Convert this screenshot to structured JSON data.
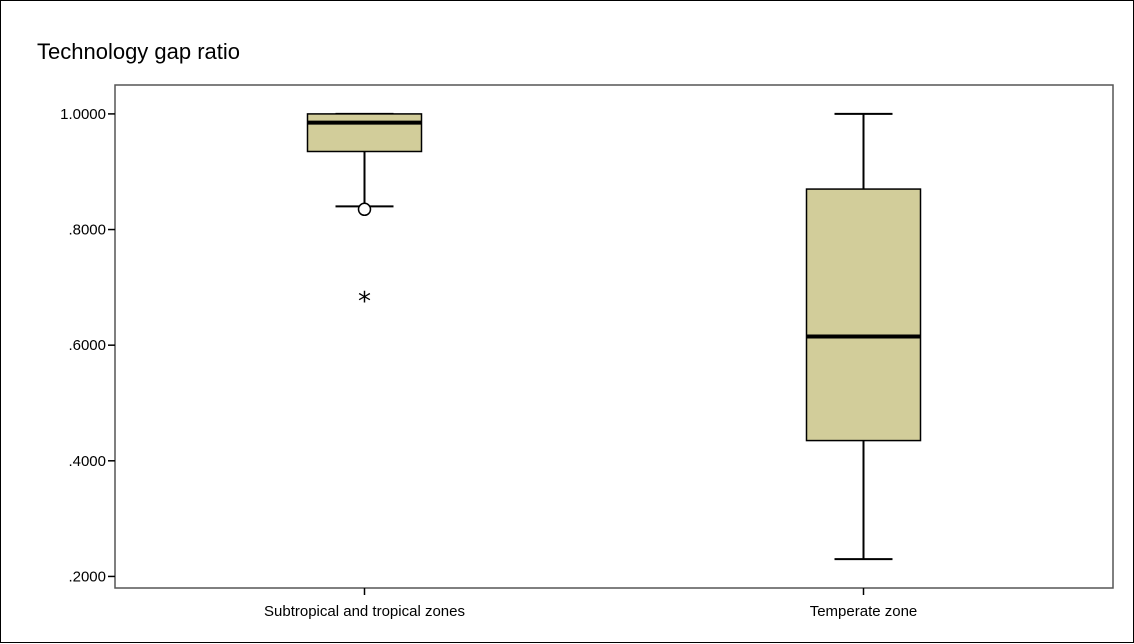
{
  "chart_data": {
    "type": "boxplot",
    "ylabel": "Technology gap ratio",
    "ylim": [
      0.18,
      1.05
    ],
    "y_ticks": [
      1.0,
      0.8,
      0.6,
      0.4,
      0.2
    ],
    "y_tick_labels": [
      "1.0000",
      ".8000",
      ".6000",
      ".4000",
      ".2000"
    ],
    "grid": false,
    "box_color": "#d2cd9a",
    "categories": [
      "Subtropical and tropical zones",
      "Temperate zone"
    ],
    "boxes": [
      {
        "category": "Subtropical and tropical zones",
        "whisker_low": 0.84,
        "q1": 0.935,
        "median": 0.985,
        "q3": 1.0,
        "whisker_high": 1.0,
        "outliers": [
          0.835
        ],
        "extremes": [
          0.68
        ]
      },
      {
        "category": "Temperate zone",
        "whisker_low": 0.23,
        "q1": 0.435,
        "median": 0.615,
        "q3": 0.87,
        "whisker_high": 1.0,
        "outliers": [],
        "extremes": []
      }
    ]
  }
}
